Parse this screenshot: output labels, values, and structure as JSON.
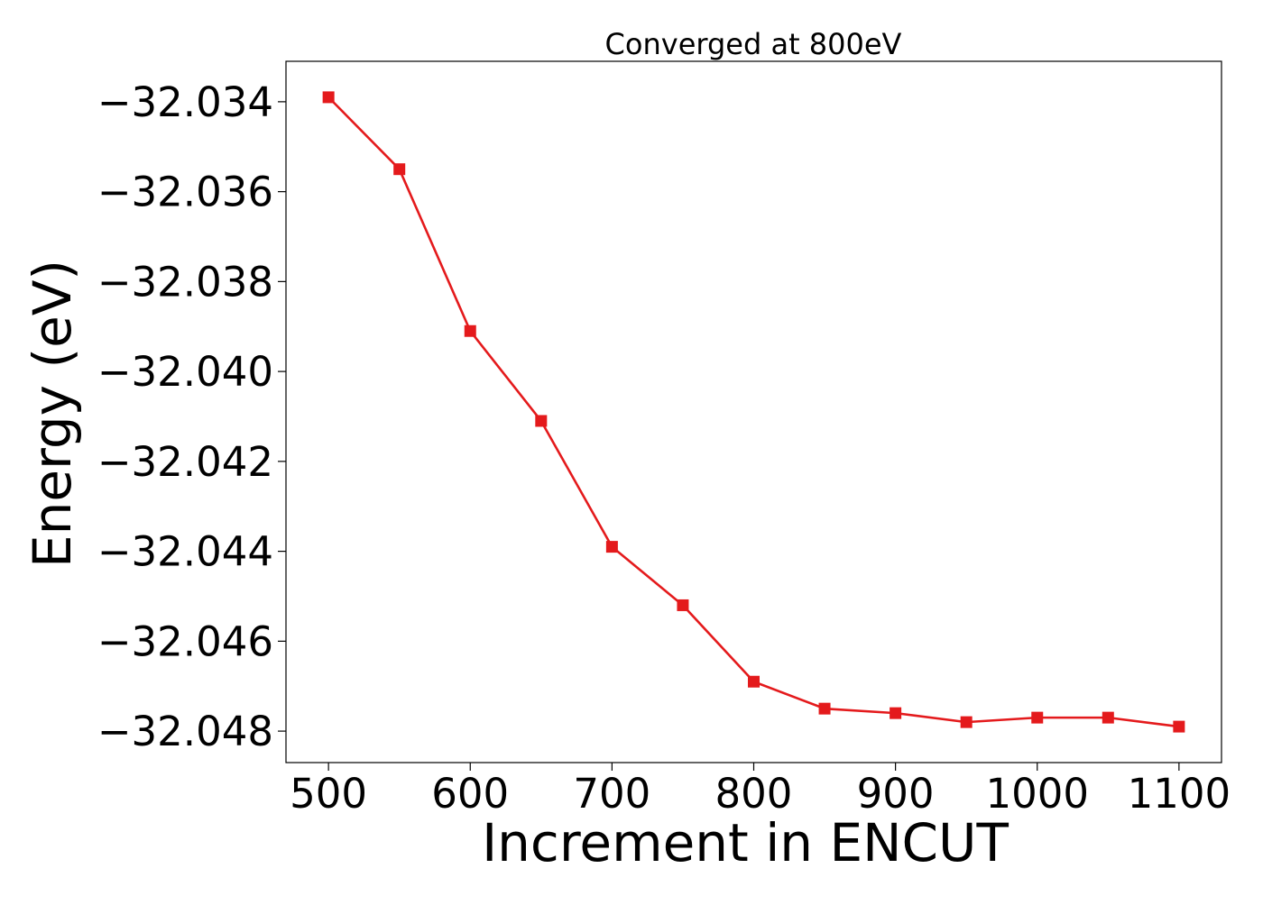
{
  "chart_data": {
    "type": "line",
    "title": "Converged at 800eV",
    "xlabel": "Increment in ENCUT",
    "ylabel": "Energy (eV)",
    "xlim": [
      470,
      1130
    ],
    "ylim": [
      -32.0487,
      -32.0331
    ],
    "xticks": [
      500,
      600,
      700,
      800,
      900,
      1000,
      1100
    ],
    "xtick_labels": [
      "500",
      "600",
      "700",
      "800",
      "900",
      "1000",
      "1100"
    ],
    "yticks": [
      -32.034,
      -32.036,
      -32.038,
      -32.04,
      -32.042,
      -32.044,
      -32.046,
      -32.048
    ],
    "ytick_labels": [
      "−32.034",
      "−32.036",
      "−32.038",
      "−32.040",
      "−32.042",
      "−32.044",
      "−32.046",
      "−32.048"
    ],
    "grid": false,
    "series": [
      {
        "color": "#e41a1c",
        "marker": "square",
        "x": [
          500,
          550,
          600,
          650,
          700,
          750,
          800,
          850,
          900,
          950,
          1000,
          1050,
          1100
        ],
        "y": [
          -32.0339,
          -32.0355,
          -32.0391,
          -32.0411,
          -32.0439,
          -32.0452,
          -32.0469,
          -32.0475,
          -32.0476,
          -32.0478,
          -32.0477,
          -32.0477,
          -32.0479
        ]
      }
    ]
  }
}
